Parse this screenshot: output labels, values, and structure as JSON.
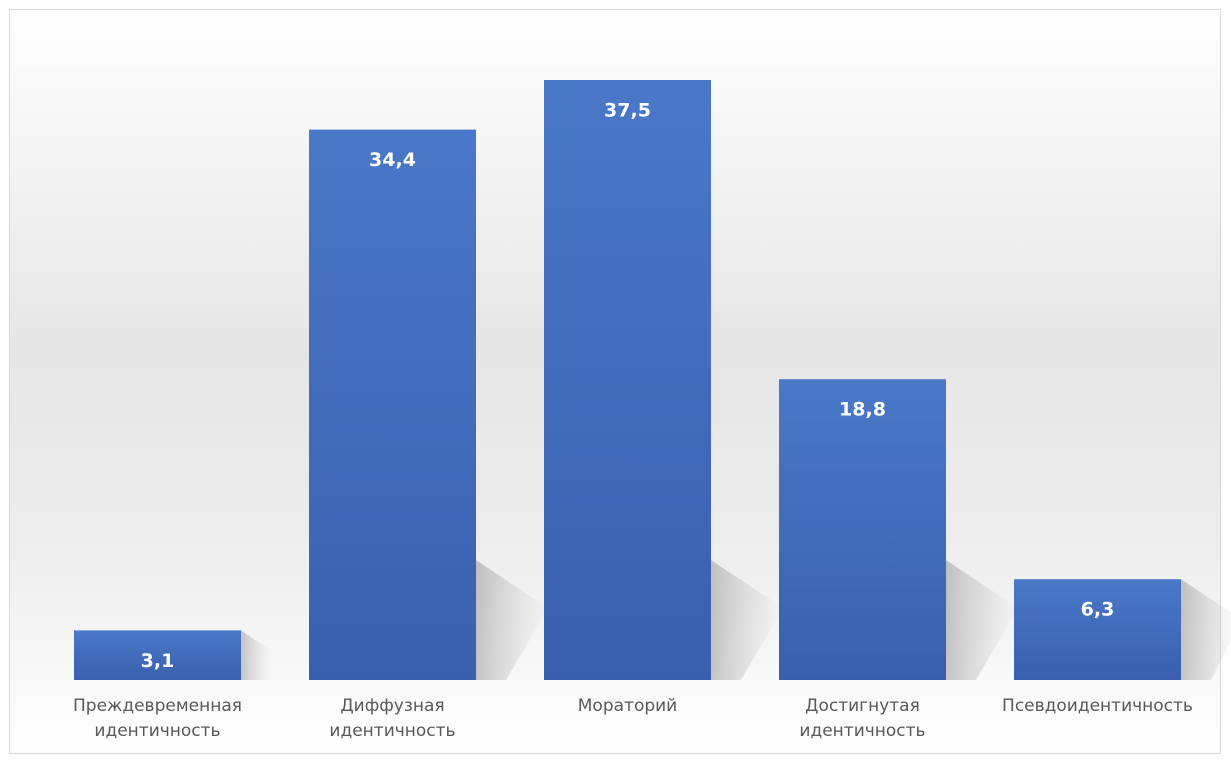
{
  "chart_data": {
    "type": "bar",
    "categories": [
      "Преждевременная\nидентичность",
      "Диффузная\nидентичность",
      "Мораторий",
      "Достигнутая\nидентичность",
      "Псевдоидентичность"
    ],
    "values": [
      3.1,
      34.4,
      37.5,
      18.8,
      6.3
    ],
    "value_labels": [
      "3,1",
      "34,4",
      "37,5",
      "18,8",
      "6,3"
    ],
    "color": "#4472c4"
  }
}
